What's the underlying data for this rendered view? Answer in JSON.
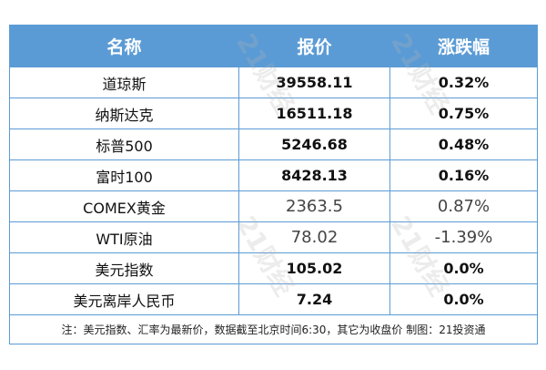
{
  "header": {
    "name": "名称",
    "price": "报价",
    "change": "涨跌幅"
  },
  "rows": [
    {
      "name": "道琼斯",
      "price": "39558.11",
      "change": "0.32%"
    },
    {
      "name": "纳斯达克",
      "price": "16511.18",
      "change": "0.75%"
    },
    {
      "name": "标普500",
      "price": "5246.68",
      "change": "0.48%"
    },
    {
      "name": "富时100",
      "price": "8428.13",
      "change": "0.16%"
    },
    {
      "name": "COMEX黄金",
      "price": "2363.5",
      "change": "0.87%"
    },
    {
      "name": "WTI原油",
      "price": "78.02",
      "change": "-1.39%"
    },
    {
      "name": "美元指数",
      "price": "105.02",
      "change": "0.0%"
    },
    {
      "name": "美元离岸人民币",
      "price": "7.24",
      "change": "0.0%"
    }
  ],
  "note": "注：美元指数、汇率为最新价，数据截至北京时间6:30，其它为收盘价 制图：21投资通",
  "watermark": "21财经",
  "colors": {
    "header_bg": "#5b9bd5",
    "border": "#5b9bd5"
  }
}
